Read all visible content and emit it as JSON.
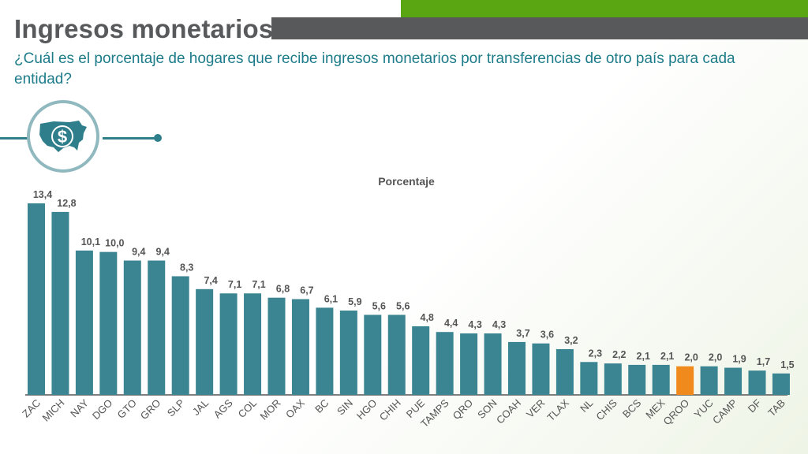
{
  "header": {
    "title": "Ingresos monetarios",
    "subtitle": "¿Cuál es el porcentaje de hogares que recibe ingresos monetarios por transferencias de otro país para cada entidad?"
  },
  "icon": "usa-map-dollar-icon",
  "colors": {
    "bar": "#3b8592",
    "highlight": "#f08a1c",
    "axis": "#555555",
    "label": "#555555"
  },
  "chart_data": {
    "type": "bar",
    "title": "Porcentaje",
    "categories": [
      "ZAC",
      "MICH",
      "NAY",
      "DGO",
      "GTO",
      "GRO",
      "SLP",
      "JAL",
      "AGS",
      "COL",
      "MOR",
      "OAX",
      "BC",
      "SIN",
      "HGO",
      "CHIH",
      "PUE",
      "TAMPS",
      "QRO",
      "SON",
      "COAH",
      "VER",
      "TLAX",
      "NL",
      "CHIS",
      "BCS",
      "MEX",
      "QROO",
      "YUC",
      "CAMP",
      "DF",
      "TAB"
    ],
    "values": [
      13.4,
      12.8,
      10.1,
      10.0,
      9.4,
      9.4,
      8.3,
      7.4,
      7.1,
      7.1,
      6.8,
      6.7,
      6.1,
      5.9,
      5.6,
      5.6,
      4.8,
      4.4,
      4.3,
      4.3,
      3.7,
      3.6,
      3.2,
      2.3,
      2.2,
      2.1,
      2.1,
      2.0,
      2.0,
      1.9,
      1.7,
      1.5
    ],
    "value_labels": [
      "13,4",
      "12,8",
      "10,1",
      "10,0",
      "9,4",
      "9,4",
      "8,3",
      "7,4",
      "7,1",
      "7,1",
      "6,8",
      "6,7",
      "6,1",
      "5,9",
      "5,6",
      "5,6",
      "4,8",
      "4,4",
      "4,3",
      "4,3",
      "3,7",
      "3,6",
      "3,2",
      "2,3",
      "2,2",
      "2,1",
      "2,1",
      "2,0",
      "2,0",
      "1,9",
      "1,7",
      "1,5"
    ],
    "highlight": "QROO",
    "ylim": [
      0,
      13.4
    ],
    "grid": false,
    "legend": "none"
  }
}
